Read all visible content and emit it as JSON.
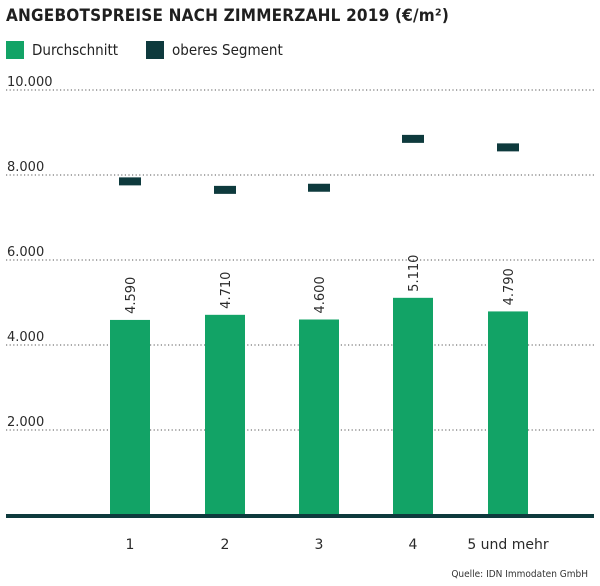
{
  "chart_data": {
    "type": "bar",
    "title": "ANGEBOTSPREISE NACH ZIMMERZAHL 2019 (€/m²)",
    "categories": [
      "1",
      "2",
      "3",
      "4",
      "5 und mehr"
    ],
    "series": [
      {
        "name": "Durchschnitt",
        "type": "bar",
        "color": "#12a366",
        "values": [
          4590,
          4710,
          4600,
          5110,
          4790
        ],
        "labels": [
          "4.590",
          "4.710",
          "4.600",
          "5.110",
          "4.790"
        ]
      },
      {
        "name": "oberes Segment",
        "type": "marker",
        "color": "#0e3a3d",
        "values": [
          7850,
          7650,
          7700,
          8850,
          8650
        ]
      }
    ],
    "yticks": [
      2000,
      4000,
      6000,
      8000,
      10000
    ],
    "ytick_labels": [
      "2.000",
      "4.000",
      "6.000",
      "8.000",
      "10.000"
    ],
    "ylim": [
      0,
      10500
    ],
    "grid": true,
    "legend_position": "top-left"
  },
  "source": "Quelle: IDN Immodaten GmbH"
}
